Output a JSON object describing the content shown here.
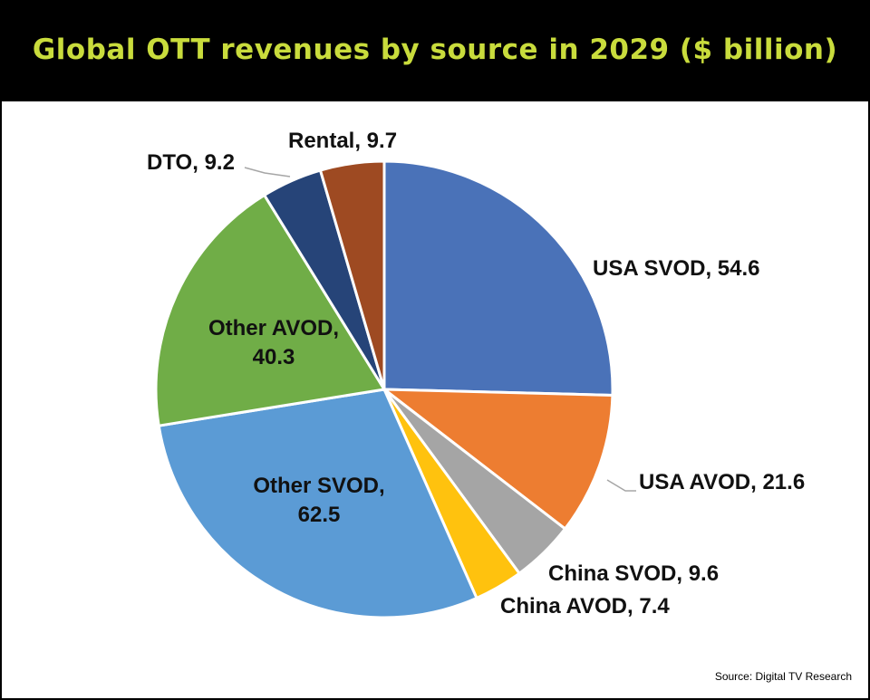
{
  "chart_data": {
    "type": "pie",
    "title": "Global OTT revenues by source in 2029 ($ billion)",
    "start_angle_deg": 0,
    "direction": "clockwise",
    "slices": [
      {
        "name": "USA SVOD",
        "value": 54.6,
        "label": "USA SVOD, 54.6",
        "color": "#4a72b8"
      },
      {
        "name": "USA AVOD",
        "value": 21.6,
        "label": "USA AVOD, 21.6",
        "color": "#ed7d31"
      },
      {
        "name": "China SVOD",
        "value": 9.6,
        "label": "China SVOD, 9.6",
        "color": "#a5a5a5"
      },
      {
        "name": "China AVOD",
        "value": 7.4,
        "label": "China AVOD, 7.4",
        "color": "#ffc20e"
      },
      {
        "name": "Other SVOD",
        "value": 62.5,
        "label": "Other SVOD,|62.5",
        "color": "#5b9bd5"
      },
      {
        "name": "Other AVOD",
        "value": 40.3,
        "label": "Other AVOD,|40.3",
        "color": "#70ad47"
      },
      {
        "name": "DTO",
        "value": 9.2,
        "label": "DTO, 9.2",
        "color": "#264478"
      },
      {
        "name": "Rental",
        "value": 9.7,
        "label": "Rental, 9.7",
        "color": "#9e4a22"
      }
    ],
    "source": "Source: Digital TV Research"
  }
}
